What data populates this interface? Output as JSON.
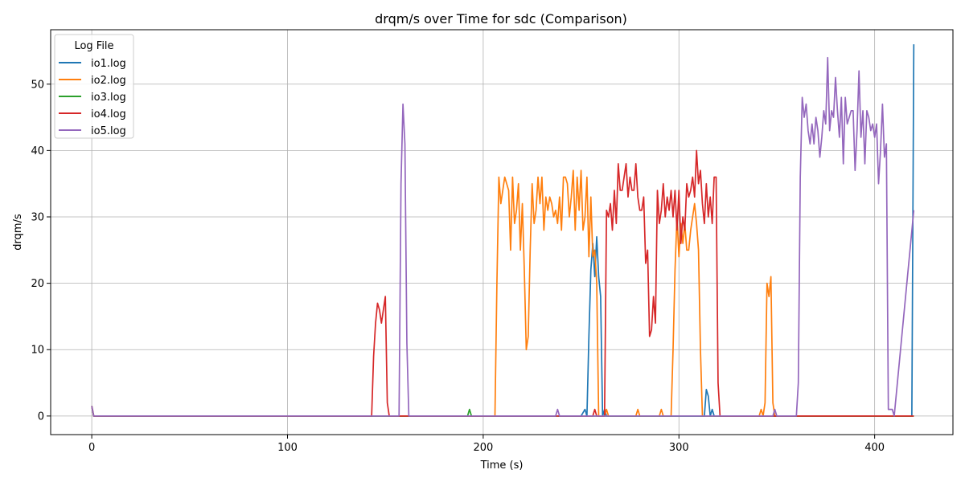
{
  "chart_data": {
    "type": "line",
    "title": "drqm/s over Time for sdc (Comparison)",
    "xlabel": "Time (s)",
    "ylabel": "drqm/s",
    "xlim": [
      -21,
      440
    ],
    "ylim": [
      -2.8,
      58.2
    ],
    "xticks": [
      0,
      100,
      200,
      300,
      400
    ],
    "yticks": [
      0,
      10,
      20,
      30,
      40,
      50
    ],
    "grid": true,
    "legend": {
      "title": "Log File",
      "placement": "top-left"
    },
    "series": [
      {
        "name": "io1.log",
        "color": "#1f77b4",
        "x": [
          0,
          1,
          250,
          252,
          253,
          254,
          255,
          256,
          257,
          258,
          259,
          260,
          261,
          262,
          263,
          313,
          314,
          315,
          316,
          317,
          318,
          419,
          420
        ],
        "y": [
          1.5,
          0,
          0,
          1,
          0,
          12,
          22,
          26,
          21,
          27,
          21,
          18,
          0,
          1,
          0,
          0,
          4,
          3,
          0,
          1,
          0,
          0,
          56
        ]
      },
      {
        "name": "io2.log",
        "color": "#ff7f0e",
        "x": [
          0,
          1,
          206,
          207,
          208,
          209,
          210,
          211,
          212,
          213,
          214,
          215,
          216,
          217,
          218,
          219,
          220,
          221,
          222,
          223,
          224,
          225,
          226,
          227,
          228,
          229,
          230,
          231,
          232,
          233,
          234,
          235,
          236,
          237,
          238,
          239,
          240,
          241,
          242,
          243,
          244,
          245,
          246,
          247,
          248,
          249,
          250,
          251,
          252,
          253,
          254,
          255,
          256,
          257,
          258,
          259,
          260,
          261,
          262,
          263,
          264,
          265,
          278,
          279,
          280,
          281,
          290,
          291,
          292,
          293,
          296,
          297,
          298,
          299,
          300,
          301,
          302,
          303,
          304,
          305,
          306,
          307,
          308,
          309,
          310,
          311,
          312,
          313,
          314,
          315,
          341,
          342,
          343,
          344,
          345,
          346,
          347,
          348,
          349,
          350,
          351,
          420
        ],
        "y": [
          1.5,
          0,
          0,
          20,
          36,
          32,
          34,
          36,
          35,
          34,
          25,
          36,
          29,
          31,
          35,
          25,
          32,
          22,
          10,
          12,
          25,
          35,
          29,
          31,
          36,
          32,
          36,
          28,
          33,
          31,
          33,
          32,
          30,
          31,
          29,
          33,
          28,
          36,
          36,
          35,
          30,
          33,
          37,
          28,
          36,
          31,
          37,
          28,
          30,
          36,
          24,
          33,
          24,
          25,
          20,
          0,
          0,
          0,
          0,
          1,
          0,
          0,
          0,
          1,
          0,
          0,
          0,
          1,
          0,
          0,
          0,
          10,
          22,
          30,
          24,
          29,
          26,
          29,
          25,
          25,
          28,
          30,
          32,
          29,
          25,
          10,
          0,
          0,
          0,
          0,
          0,
          1,
          0,
          2,
          20,
          18,
          21,
          2,
          0,
          0,
          0,
          0
        ]
      },
      {
        "name": "io3.log",
        "color": "#2ca02c",
        "x": [
          0,
          1,
          192,
          193,
          194,
          420
        ],
        "y": [
          1.5,
          0,
          0,
          1,
          0,
          0
        ]
      },
      {
        "name": "io4.log",
        "color": "#d62728",
        "x": [
          0,
          1,
          143,
          144,
          145,
          146,
          147,
          148,
          149,
          150,
          151,
          152,
          255,
          256,
          257,
          258,
          259,
          260,
          261,
          262,
          263,
          264,
          265,
          266,
          267,
          268,
          269,
          270,
          271,
          272,
          273,
          274,
          275,
          276,
          277,
          278,
          279,
          280,
          281,
          282,
          283,
          284,
          285,
          286,
          287,
          288,
          289,
          290,
          291,
          292,
          293,
          294,
          295,
          296,
          297,
          298,
          299,
          300,
          301,
          302,
          303,
          304,
          305,
          306,
          307,
          308,
          309,
          310,
          311,
          312,
          313,
          314,
          315,
          316,
          317,
          318,
          319,
          320,
          321,
          322,
          323,
          324,
          325,
          419,
          420
        ],
        "y": [
          1.5,
          0,
          0,
          9,
          14,
          17,
          16,
          14,
          16,
          18,
          2,
          0,
          0,
          0,
          1,
          0,
          0,
          0,
          0,
          0,
          31,
          30,
          32,
          28,
          34,
          29,
          38,
          34,
          34,
          36,
          38,
          33,
          36,
          34,
          34,
          38,
          33,
          31,
          31,
          33,
          23,
          25,
          12,
          13,
          18,
          14,
          34,
          29,
          31,
          35,
          30,
          33,
          31,
          34,
          30,
          34,
          28,
          34,
          26,
          30,
          28,
          35,
          33,
          34,
          36,
          33,
          40,
          35,
          37,
          32,
          29,
          35,
          30,
          33,
          29,
          36,
          36,
          5,
          0,
          0,
          0,
          0,
          0,
          0,
          0
        ]
      },
      {
        "name": "io5.log",
        "color": "#9467bd",
        "x": [
          0,
          1,
          157,
          158,
          159,
          160,
          161,
          162,
          163,
          237,
          238,
          239,
          240,
          347,
          348,
          349,
          350,
          360,
          361,
          362,
          363,
          364,
          365,
          366,
          367,
          368,
          369,
          370,
          371,
          372,
          373,
          374,
          375,
          376,
          377,
          378,
          379,
          380,
          381,
          382,
          383,
          384,
          385,
          386,
          387,
          388,
          389,
          390,
          391,
          392,
          393,
          394,
          395,
          396,
          397,
          398,
          399,
          400,
          401,
          402,
          403,
          404,
          405,
          406,
          407,
          408,
          409,
          410,
          420
        ],
        "y": [
          1.5,
          0,
          0,
          35,
          47,
          41,
          11,
          0,
          0,
          0,
          1,
          0,
          0,
          0,
          0,
          1,
          0,
          0,
          5,
          36,
          48,
          45,
          47,
          43,
          41,
          44,
          41,
          45,
          43,
          39,
          42,
          46,
          44,
          54,
          43,
          46,
          45,
          51,
          46,
          42,
          48,
          38,
          48,
          44,
          45,
          46,
          46,
          37,
          43,
          52,
          42,
          46,
          38,
          46,
          45,
          43,
          44,
          42,
          44,
          35,
          40,
          47,
          39,
          41,
          1,
          1,
          1,
          0,
          31
        ]
      }
    ]
  }
}
